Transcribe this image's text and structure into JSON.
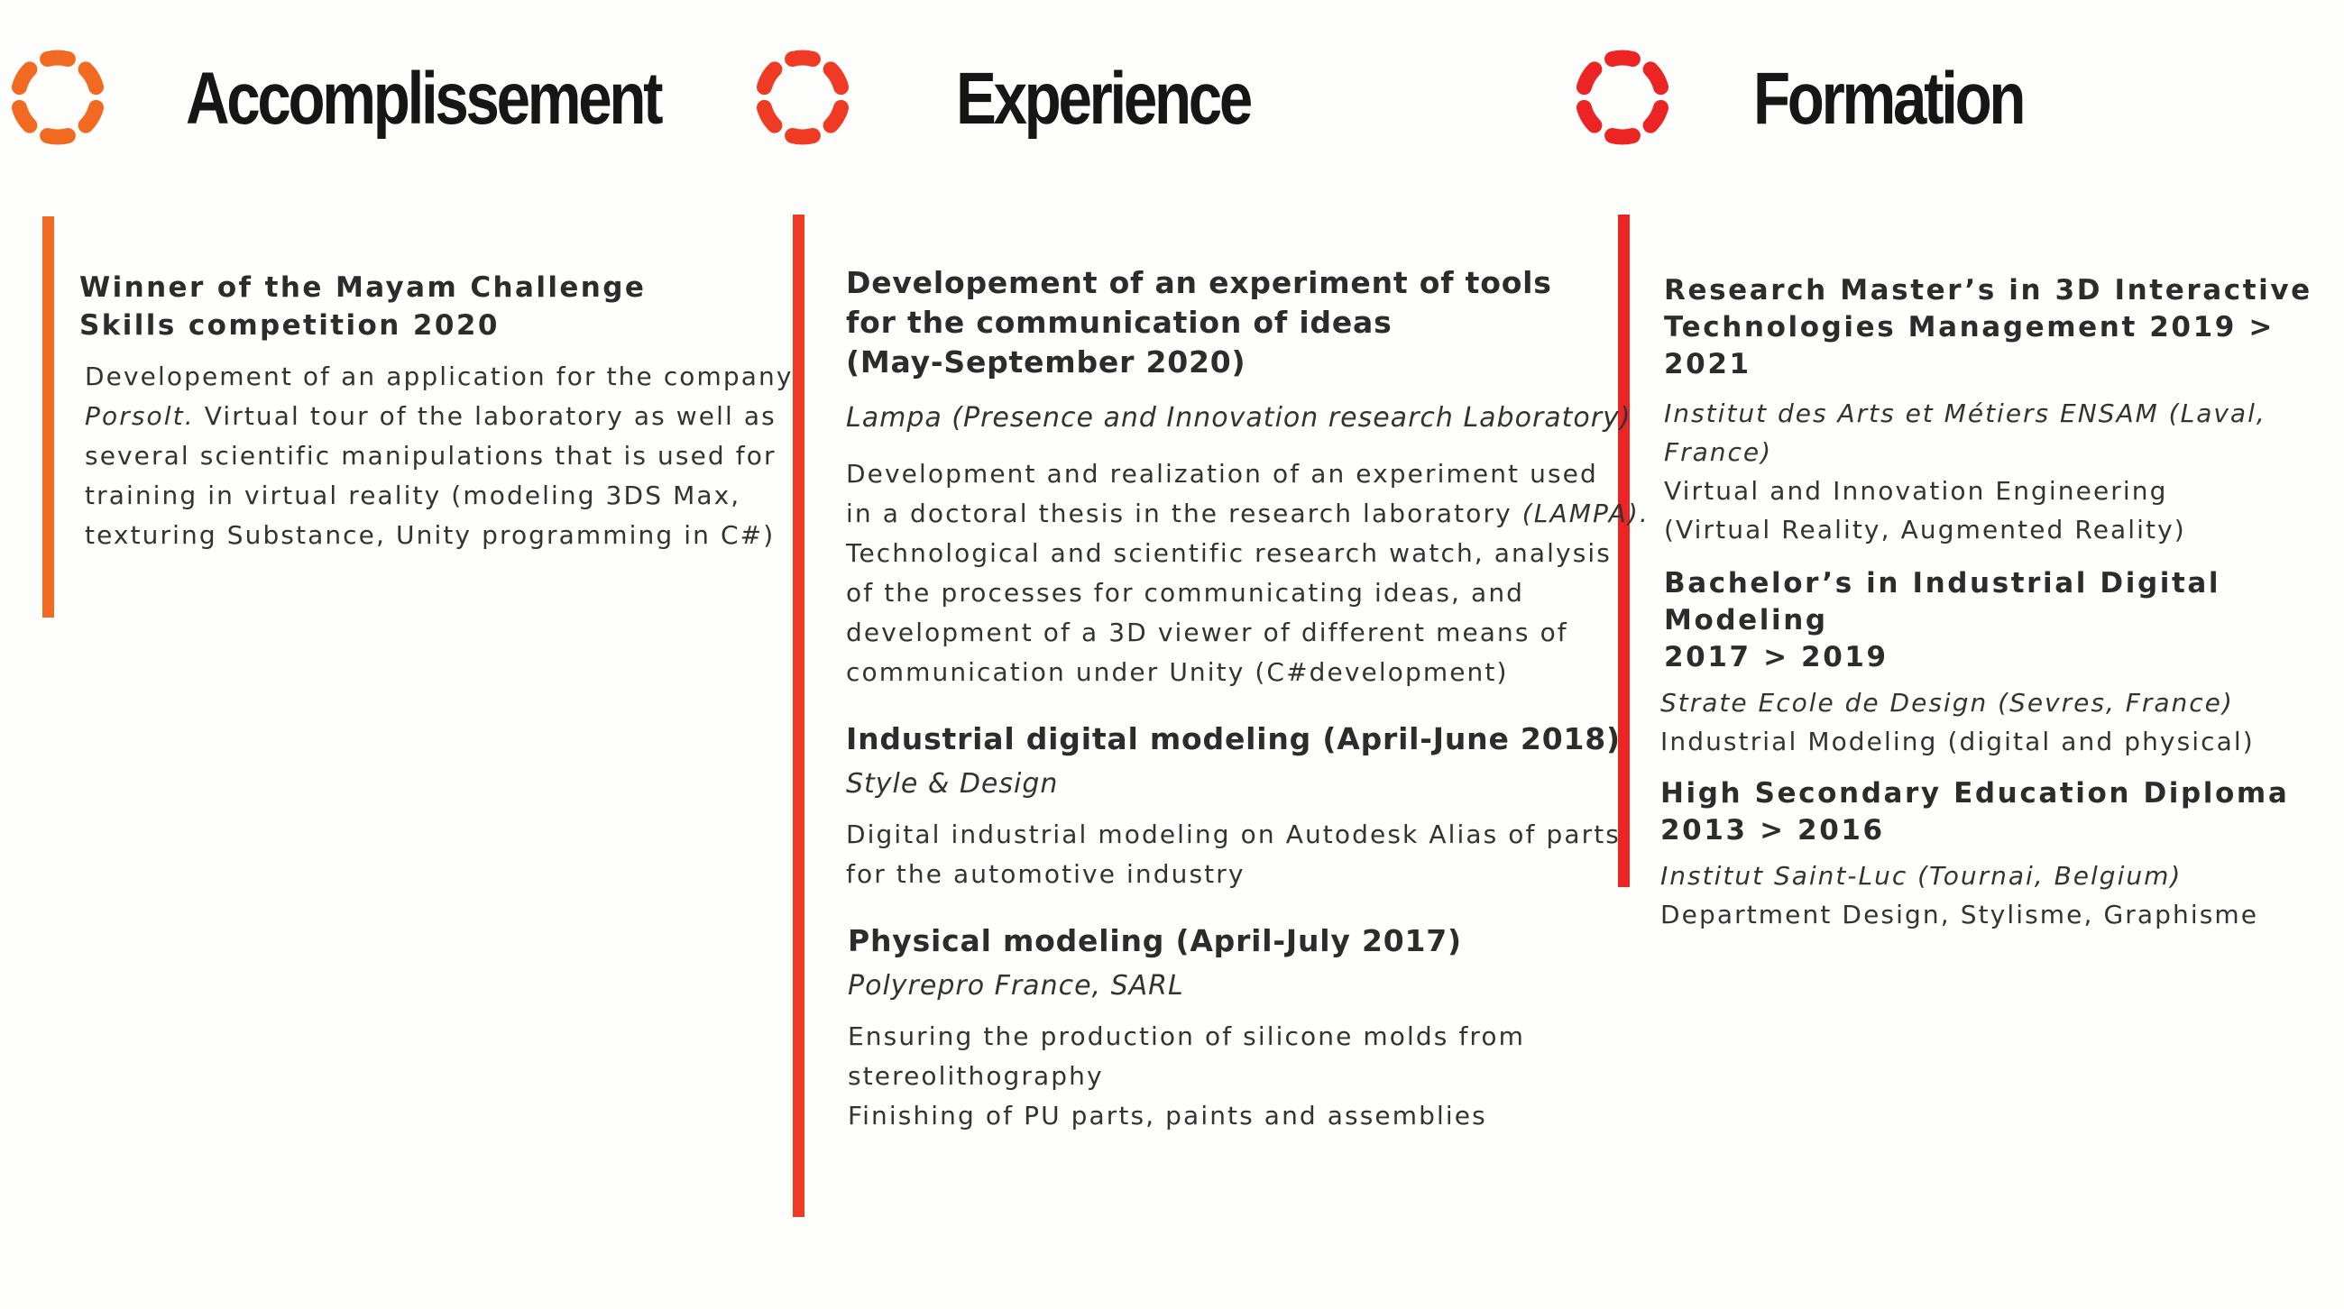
{
  "colors": {
    "accomplissement_accent": "#f26a21",
    "experience_accent": "#ef3b23",
    "formation_accent": "#ec2424"
  },
  "icons": {
    "section_logo": "dashed-ring-icon"
  },
  "accomplissement": {
    "heading": "Accomplissement",
    "entries": [
      {
        "title": "Winner of the Mayam Challenge\nSkills competition 2020",
        "desc": {
          "l1": "Developement of an application for the company",
          "l2_italic": "Porsolt.",
          "l2_rest": " Virtual tour of the laboratory as well as",
          "l3": "several scientific manipulations that is used for",
          "l4": "training in virtual reality (modeling 3DS Max,",
          "l5": "texturing Substance, Unity programming in C#)"
        }
      }
    ]
  },
  "experience": {
    "heading": "Experience",
    "entries": [
      {
        "title": "Developement of an experiment of tools\nfor the communication of ideas\n(May-September 2020)",
        "sub": "Lampa (Presence and Innovation research Laboratory)",
        "desc": {
          "l1": "Development and realization of an experiment used",
          "l2": "in a doctoral thesis in the research laboratory ",
          "l2_italic": "(LAMPA).",
          "l3": "Technological and scientific research watch, analysis",
          "l4": "of the processes for communicating ideas, and",
          "l5": "development of a 3D viewer of different means of",
          "l6": "communication under Unity (C#development)"
        }
      },
      {
        "title": "Industrial digital modeling (April-June 2018)",
        "sub": "Style & Design",
        "desc": {
          "l1": "Digital industrial modeling on Autodesk Alias of parts",
          "l2": "for the automotive industry"
        }
      },
      {
        "title": "Physical modeling (April-July 2017)",
        "sub": "Polyrepro France, SARL",
        "desc": {
          "l1": "Ensuring the production of silicone molds from",
          "l2": "stereolithography",
          "l3": "Finishing of PU parts, paints and assemblies"
        }
      }
    ]
  },
  "formation": {
    "heading": "Formation",
    "entries": [
      {
        "title": "Research Master’s in 3D Interactive\nTechnologies Management 2019 > 2021",
        "sub": "Institut des Arts et Métiers ENSAM (Laval, France)",
        "desc": {
          "l1": "Virtual and Innovation Engineering",
          "l2": "(Virtual Reality, Augmented Reality)"
        }
      },
      {
        "title": "Bachelor’s in Industrial Digital Modeling\n2017 > 2019",
        "sub": "Strate Ecole de Design (Sevres, France)",
        "desc": {
          "l1": "Industrial Modeling (digital and physical)"
        }
      },
      {
        "title": "High Secondary Education Diploma\n 2013 > 2016",
        "sub": "Institut Saint-Luc (Tournai, Belgium)",
        "desc": {
          "l1": "Department Design, Stylisme, Graphisme"
        }
      }
    ]
  }
}
